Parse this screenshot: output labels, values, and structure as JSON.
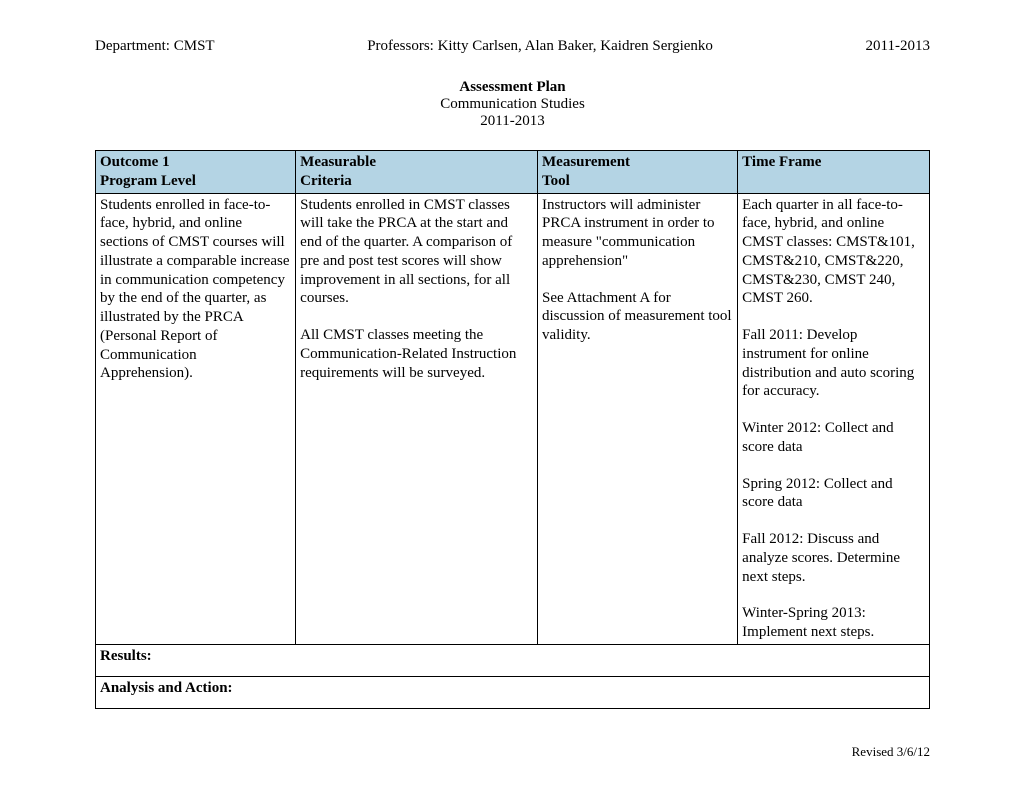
{
  "header": {
    "department": "Department:  CMST",
    "professors": "Professors: Kitty Carlsen, Alan Baker, Kaidren Sergienko",
    "years": "2011-2013"
  },
  "title": {
    "main": "Assessment Plan",
    "subtitle": "Communication Studies",
    "years": "2011-2013"
  },
  "table": {
    "headers": {
      "col1_line1": "Outcome 1",
      "col1_line2": "Program Level",
      "col2_line1": "Measurable",
      "col2_line2": "Criteria",
      "col3_line1": "Measurement",
      "col3_line2": "Tool",
      "col4_line1": "Time Frame"
    },
    "body": {
      "col1_p1": "Students enrolled in face-to-face, hybrid, and online sections of CMST courses will illustrate a comparable increase in communication competency by the end of the quarter, as illustrated by the PRCA (Personal Report of Communication Apprehension).",
      "col2_p1": "Students enrolled in CMST classes will take the PRCA at the start and end of the quarter.  A comparison of pre and post test scores will show improvement in all sections, for all courses.",
      "col2_p2": "All CMST classes meeting the Communication-Related Instruction requirements will be surveyed.",
      "col3_p1": "Instructors will administer PRCA instrument  in order to measure \"communication apprehension\"",
      "col3_p2": "See Attachment A for discussion of measurement tool validity.",
      "col4_p1": "Each quarter in all face-to-face, hybrid, and online CMST classes: CMST&101, CMST&210, CMST&220, CMST&230, CMST 240, CMST 260.",
      "col4_p2": "Fall 2011: Develop instrument for online distribution and auto scoring for accuracy.",
      "col4_p3": "Winter 2012: Collect and score data",
      "col4_p4": "Spring 2012:  Collect and score data",
      "col4_p5": "Fall 2012: Discuss and analyze scores.  Determine next steps.",
      "col4_p6": "Winter-Spring 2013: Implement next steps."
    },
    "results_label": "Results:",
    "analysis_label": "Analysis and Action:"
  },
  "footer": {
    "revised": "Revised 3/6/12"
  },
  "styling": {
    "header_bg_color": "#b4d4e4",
    "border_color": "#000000",
    "page_bg": "#ffffff",
    "text_color": "#000000",
    "body_font": "Times New Roman",
    "base_font_size": 15,
    "footer_font_size": 13
  }
}
